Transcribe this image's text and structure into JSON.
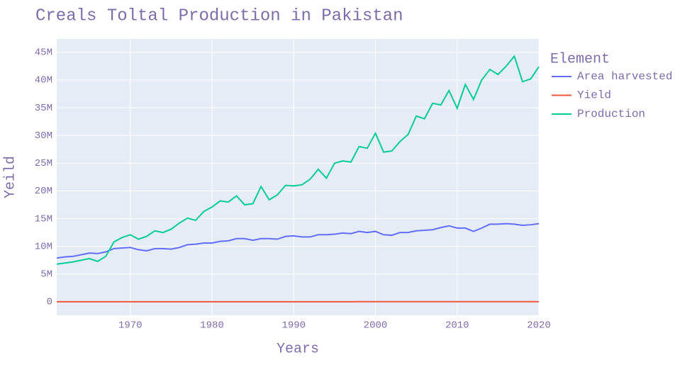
{
  "chart_data": {
    "type": "line",
    "title": "Creals Toltal Production in Pakistan",
    "x_label": "Years",
    "y_label": "Yeild",
    "legend_title": "Element",
    "x": [
      1961,
      1962,
      1963,
      1964,
      1965,
      1966,
      1967,
      1968,
      1969,
      1970,
      1971,
      1972,
      1973,
      1974,
      1975,
      1976,
      1977,
      1978,
      1979,
      1980,
      1981,
      1982,
      1983,
      1984,
      1985,
      1986,
      1987,
      1988,
      1989,
      1990,
      1991,
      1992,
      1993,
      1994,
      1995,
      1996,
      1997,
      1998,
      1999,
      2000,
      2001,
      2002,
      2003,
      2004,
      2005,
      2006,
      2007,
      2008,
      2009,
      2010,
      2011,
      2012,
      2013,
      2014,
      2015,
      2016,
      2017,
      2018,
      2019,
      2020
    ],
    "series": [
      {
        "name": "Area harvested",
        "color": "#636efa",
        "values": [
          7900000,
          8100000,
          8200000,
          8500000,
          8800000,
          8700000,
          9000000,
          9600000,
          9700000,
          9800000,
          9400000,
          9200000,
          9600000,
          9600000,
          9500000,
          9800000,
          10300000,
          10400000,
          10600000,
          10600000,
          10900000,
          11000000,
          11400000,
          11400000,
          11100000,
          11400000,
          11400000,
          11300000,
          11800000,
          11900000,
          11700000,
          11700000,
          12100000,
          12100000,
          12200000,
          12400000,
          12300000,
          12700000,
          12500000,
          12700000,
          12100000,
          12000000,
          12500000,
          12500000,
          12800000,
          12900000,
          13000000,
          13400000,
          13700000,
          13300000,
          13300000,
          12700000,
          13300000,
          14000000,
          14000000,
          14100000,
          14000000,
          13800000,
          13900000,
          14100000
        ]
      },
      {
        "name": "Yield",
        "color": "#ef553b",
        "values": [
          8600,
          8700,
          8900,
          8900,
          8900,
          8400,
          9200,
          11200,
          11900,
          12400,
          12000,
          12800,
          13300,
          13000,
          13800,
          14500,
          14700,
          14200,
          15400,
          16100,
          16700,
          16400,
          16800,
          15400,
          15900,
          18300,
          16200,
          17100,
          17800,
          17600,
          18000,
          18900,
          19800,
          18400,
          20500,
          20500,
          20600,
          22100,
          22100,
          24000,
          22300,
          22700,
          23200,
          24200,
          26200,
          25600,
          27500,
          26500,
          27800,
          26200,
          29500,
          28700,
          30100,
          29900,
          29300,
          30100,
          31600,
          28800,
          28900,
          30100
        ]
      },
      {
        "name": "Production",
        "color": "#00cc96",
        "values": [
          6800000,
          7000000,
          7200000,
          7500000,
          7800000,
          7300000,
          8200000,
          10800000,
          11600000,
          12100000,
          11300000,
          11800000,
          12800000,
          12500000,
          13100000,
          14200000,
          15100000,
          14700000,
          16300000,
          17100000,
          18200000,
          18000000,
          19100000,
          17500000,
          17700000,
          20800000,
          18400000,
          19300000,
          21000000,
          20900000,
          21100000,
          22100000,
          23900000,
          22300000,
          25000000,
          25400000,
          25200000,
          28000000,
          27700000,
          30400000,
          27000000,
          27200000,
          28900000,
          30200000,
          33500000,
          33000000,
          35800000,
          35500000,
          38100000,
          34900000,
          39200000,
          36500000,
          40000000,
          41900000,
          41000000,
          42500000,
          44300000,
          39700000,
          40200000,
          42400000
        ]
      }
    ],
    "xlim": [
      1961,
      2020
    ],
    "xticks": [
      1970,
      1980,
      1990,
      2000,
      2010,
      2020
    ],
    "ylim": [
      -2430000,
      47400000
    ],
    "yticks": [
      0,
      {
        "value": 5000000,
        "label": "5M"
      },
      {
        "value": 10000000,
        "label": "10M"
      },
      {
        "value": 15000000,
        "label": "15M"
      },
      {
        "value": 20000000,
        "label": "20M"
      },
      {
        "value": 25000000,
        "label": "25M"
      },
      {
        "value": 30000000,
        "label": "30M"
      },
      {
        "value": 35000000,
        "label": "35M"
      },
      {
        "value": 40000000,
        "label": "40M"
      },
      {
        "value": 45000000,
        "label": "45M"
      }
    ],
    "grid": true
  }
}
